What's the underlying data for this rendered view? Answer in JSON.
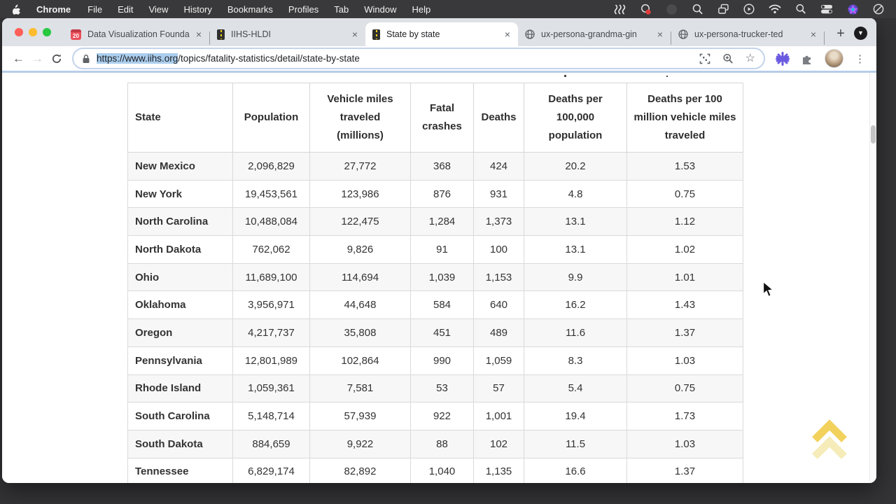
{
  "menubar": {
    "app": "Chrome",
    "items": [
      "File",
      "Edit",
      "View",
      "History",
      "Bookmarks",
      "Profiles",
      "Tab",
      "Window",
      "Help"
    ],
    "status_icons": [
      "waves",
      "screen-mirroring",
      "dimmed-app",
      "magnifier-lens",
      "window-stack",
      "play-circle",
      "wifi",
      "spotlight-search",
      "control-toggles",
      "colorful-app",
      "do-not-disturb"
    ]
  },
  "tabs": [
    {
      "title": "Data Visualization Founda",
      "favicon": "calendar-20",
      "badge": "20"
    },
    {
      "title": "IIHS-HLDI",
      "favicon": "road"
    },
    {
      "title": "State by state",
      "favicon": "road",
      "active": true
    },
    {
      "title": "ux-persona-grandma-gin",
      "favicon": "globe"
    },
    {
      "title": "ux-persona-trucker-ted",
      "favicon": "globe"
    }
  ],
  "icons": {
    "close": "×",
    "new_tab": "+",
    "dropdown": "▼",
    "back": "←",
    "forward": "→",
    "kebab": "⋮",
    "star": "☆"
  },
  "url": {
    "selected": "https://www.iihs.org",
    "rest": "/topics/fatality-statistics/detail/state-by-state"
  },
  "colors": {
    "selection": "#abceee",
    "accent_chevron": "#f0cb45",
    "row_stripe": "#f7f7f7"
  },
  "table": {
    "headers": [
      "State",
      "Population",
      "Vehicle miles traveled (millions)",
      "Fatal crashes",
      "Deaths",
      "Deaths per 100,000 population",
      "Deaths per 100 million vehicle miles traveled"
    ],
    "rows": [
      [
        "New Mexico",
        "2,096,829",
        "27,772",
        "368",
        "424",
        "20.2",
        "1.53"
      ],
      [
        "New York",
        "19,453,561",
        "123,986",
        "876",
        "931",
        "4.8",
        "0.75"
      ],
      [
        "North Carolina",
        "10,488,084",
        "122,475",
        "1,284",
        "1,373",
        "13.1",
        "1.12"
      ],
      [
        "North Dakota",
        "762,062",
        "9,826",
        "91",
        "100",
        "13.1",
        "1.02"
      ],
      [
        "Ohio",
        "11,689,100",
        "114,694",
        "1,039",
        "1,153",
        "9.9",
        "1.01"
      ],
      [
        "Oklahoma",
        "3,956,971",
        "44,648",
        "584",
        "640",
        "16.2",
        "1.43"
      ],
      [
        "Oregon",
        "4,217,737",
        "35,808",
        "451",
        "489",
        "11.6",
        "1.37"
      ],
      [
        "Pennsylvania",
        "12,801,989",
        "102,864",
        "990",
        "1,059",
        "8.3",
        "1.03"
      ],
      [
        "Rhode Island",
        "1,059,361",
        "7,581",
        "53",
        "57",
        "5.4",
        "0.75"
      ],
      [
        "South Carolina",
        "5,148,714",
        "57,939",
        "922",
        "1,001",
        "19.4",
        "1.73"
      ],
      [
        "South Dakota",
        "884,659",
        "9,922",
        "88",
        "102",
        "11.5",
        "1.03"
      ],
      [
        "Tennessee",
        "6,829,174",
        "82,892",
        "1,040",
        "1,135",
        "16.6",
        "1.37"
      ]
    ]
  }
}
